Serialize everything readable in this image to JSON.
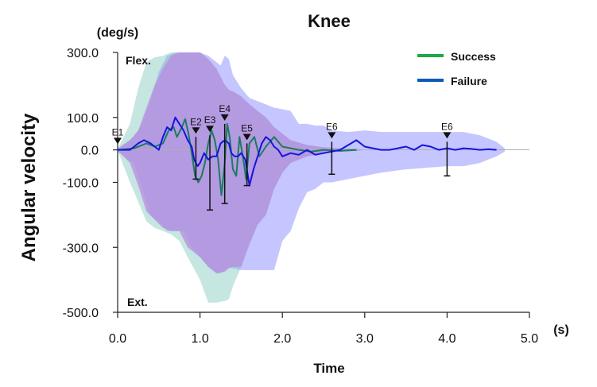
{
  "chart_data": {
    "type": "line",
    "title": "Knee",
    "xlabel": "Time",
    "ylabel": "Angular velocity",
    "y_unit": "(deg/s)",
    "x_unit": "(s)",
    "xlim": [
      0,
      5
    ],
    "ylim": [
      -500,
      300
    ],
    "x_ticks": [
      {
        "value": 0,
        "label": "0.0"
      },
      {
        "value": 1,
        "label": "1.0"
      },
      {
        "value": 2,
        "label": "2.0"
      },
      {
        "value": 3,
        "label": "3.0"
      },
      {
        "value": 4,
        "label": "4.0"
      },
      {
        "value": 5,
        "label": "5.0"
      }
    ],
    "y_ticks": [
      {
        "value": 300,
        "label": "300.0"
      },
      {
        "value": 100,
        "label": "100.0"
      },
      {
        "value": 0,
        "label": "0.0"
      },
      {
        "value": -100,
        "label": "-100.0"
      },
      {
        "value": -300,
        "label": "-300.0"
      },
      {
        "value": -500,
        "label": "-500.0"
      }
    ],
    "annotations": {
      "flex": "Flex.",
      "ext": "Ext."
    },
    "legend": {
      "position": "top-right",
      "items": [
        {
          "name": "Success",
          "color": "#1aa84a"
        },
        {
          "name": "Failure",
          "color": "#0a5bb5"
        }
      ]
    },
    "bands": [
      {
        "series": "Failure",
        "color": "#8b8bff",
        "opacity": 0.5,
        "x": [
          0.0,
          0.2,
          0.3,
          0.4,
          0.5,
          0.6,
          0.7,
          0.8,
          0.9,
          1.0,
          1.1,
          1.2,
          1.25,
          1.3,
          1.35,
          1.4,
          1.5,
          1.6,
          1.7,
          1.8,
          1.9,
          2.0,
          2.1,
          2.2,
          2.3,
          2.4,
          2.5,
          2.6,
          2.8,
          3.0,
          3.2,
          3.5,
          4.0,
          4.2,
          4.4,
          4.6,
          4.7
        ],
        "upper": [
          5,
          40,
          80,
          150,
          240,
          290,
          300,
          300,
          300,
          300,
          290,
          270,
          260,
          290,
          280,
          230,
          190,
          160,
          150,
          140,
          130,
          125,
          120,
          80,
          80,
          75,
          75,
          60,
          55,
          60,
          55,
          55,
          55,
          55,
          45,
          25,
          5
        ],
        "lower": [
          -5,
          -40,
          -120,
          -200,
          -220,
          -250,
          -250,
          -250,
          -300,
          -330,
          -360,
          -380,
          -380,
          -370,
          -360,
          -365,
          -370,
          -370,
          -370,
          -370,
          -370,
          -280,
          -250,
          -180,
          -130,
          -120,
          -100,
          -100,
          -90,
          -80,
          -70,
          -60,
          -50,
          -50,
          -40,
          -20,
          -5
        ]
      },
      {
        "series": "Success",
        "color": "#7fc8bc",
        "opacity": 0.45,
        "x": [
          0.0,
          0.15,
          0.25,
          0.35,
          0.45,
          0.55,
          0.65,
          0.75,
          0.85,
          1.0,
          1.1,
          1.2,
          1.3,
          1.35,
          1.4,
          1.5,
          1.6,
          1.7,
          1.8,
          1.9,
          2.0,
          2.1,
          2.3,
          2.5,
          2.7,
          2.9,
          3.0
        ],
        "upper": [
          2,
          80,
          190,
          270,
          285,
          290,
          300,
          300,
          300,
          300,
          280,
          250,
          200,
          185,
          180,
          165,
          140,
          120,
          100,
          70,
          50,
          30,
          15,
          8,
          5,
          3,
          0
        ],
        "lower": [
          -2,
          -100,
          -160,
          -220,
          -240,
          -250,
          -260,
          -280,
          -330,
          -400,
          -470,
          -470,
          -465,
          -460,
          -420,
          -360,
          -290,
          -230,
          -200,
          -120,
          -70,
          -40,
          -20,
          -10,
          -5,
          -3,
          0
        ]
      },
      {
        "series": "Overlap",
        "color": "#b88be0",
        "opacity": 0.75,
        "x": [
          0.0,
          0.15,
          0.25,
          0.35,
          0.45,
          0.55,
          0.65,
          0.75,
          0.85,
          1.0,
          1.1,
          1.2,
          1.3,
          1.35,
          1.4,
          1.5,
          1.6,
          1.7,
          1.8,
          1.9,
          2.0,
          2.1,
          2.3,
          2.5,
          2.7,
          2.9,
          3.0
        ],
        "upper": [
          2,
          30,
          60,
          130,
          200,
          250,
          290,
          300,
          300,
          300,
          280,
          250,
          200,
          185,
          180,
          165,
          140,
          120,
          100,
          70,
          50,
          30,
          15,
          8,
          5,
          3,
          0
        ],
        "lower": [
          -2,
          -40,
          -110,
          -190,
          -215,
          -240,
          -250,
          -250,
          -300,
          -330,
          -360,
          -380,
          -375,
          -365,
          -360,
          -360,
          -290,
          -230,
          -200,
          -120,
          -70,
          -40,
          -20,
          -10,
          -5,
          -3,
          0
        ]
      }
    ],
    "series": [
      {
        "name": "Success",
        "color": "#1c7a60",
        "x": [
          0.0,
          0.2,
          0.35,
          0.45,
          0.55,
          0.62,
          0.68,
          0.72,
          0.78,
          0.82,
          0.86,
          0.9,
          0.94,
          0.98,
          1.02,
          1.06,
          1.1,
          1.14,
          1.18,
          1.22,
          1.26,
          1.3,
          1.33,
          1.36,
          1.4,
          1.44,
          1.48,
          1.52,
          1.56,
          1.6,
          1.66,
          1.72,
          1.8,
          1.9,
          2.0,
          2.1,
          2.2,
          2.35,
          2.5,
          2.7,
          2.9
        ],
        "y": [
          0,
          5,
          20,
          10,
          20,
          60,
          70,
          40,
          70,
          95,
          50,
          -10,
          -80,
          -100,
          -80,
          -40,
          20,
          60,
          30,
          -30,
          -140,
          -40,
          80,
          40,
          -60,
          -80,
          40,
          -20,
          -90,
          20,
          40,
          -20,
          10,
          40,
          10,
          5,
          0,
          -5,
          0,
          -3,
          0
        ]
      },
      {
        "name": "Failure",
        "color": "#1414e0",
        "x": [
          0.0,
          0.15,
          0.25,
          0.32,
          0.4,
          0.5,
          0.55,
          0.6,
          0.65,
          0.7,
          0.75,
          0.8,
          0.85,
          0.9,
          0.93,
          0.97,
          1.0,
          1.05,
          1.1,
          1.15,
          1.2,
          1.25,
          1.3,
          1.35,
          1.38,
          1.42,
          1.46,
          1.5,
          1.55,
          1.6,
          1.65,
          1.7,
          1.75,
          1.8,
          1.85,
          1.9,
          1.95,
          2.0,
          2.1,
          2.2,
          2.3,
          2.4,
          2.5,
          2.6,
          2.7,
          2.8,
          2.9,
          3.0,
          3.1,
          3.2,
          3.3,
          3.4,
          3.5,
          3.6,
          3.7,
          3.8,
          3.9,
          4.0,
          4.1,
          4.2,
          4.3,
          4.4,
          4.5,
          4.6
        ],
        "y": [
          0,
          0,
          20,
          30,
          20,
          0,
          40,
          70,
          60,
          100,
          80,
          60,
          30,
          10,
          -30,
          -50,
          -40,
          -10,
          -30,
          -20,
          -20,
          20,
          30,
          20,
          -10,
          -20,
          -20,
          -10,
          -30,
          -110,
          -60,
          -20,
          20,
          40,
          30,
          10,
          0,
          -20,
          -10,
          -15,
          0,
          -15,
          -10,
          -5,
          0,
          15,
          30,
          10,
          5,
          0,
          0,
          5,
          10,
          0,
          15,
          10,
          0,
          5,
          0,
          5,
          3,
          0,
          2,
          0
        ]
      }
    ],
    "events": [
      {
        "label": "E1",
        "x": 0.0,
        "lo": -8,
        "hi": 8
      },
      {
        "label": "E2",
        "x": 0.95,
        "lo": -90,
        "hi": 40
      },
      {
        "label": "E3",
        "x": 1.12,
        "lo": -185,
        "hi": 45
      },
      {
        "label": "E4",
        "x": 1.3,
        "lo": -165,
        "hi": 80
      },
      {
        "label": "E5",
        "x": 1.57,
        "lo": -110,
        "hi": 20
      },
      {
        "label": "E6",
        "x": 2.6,
        "lo": -75,
        "hi": 25
      },
      {
        "label": "E6",
        "x": 4.0,
        "lo": -80,
        "hi": 25
      }
    ]
  }
}
